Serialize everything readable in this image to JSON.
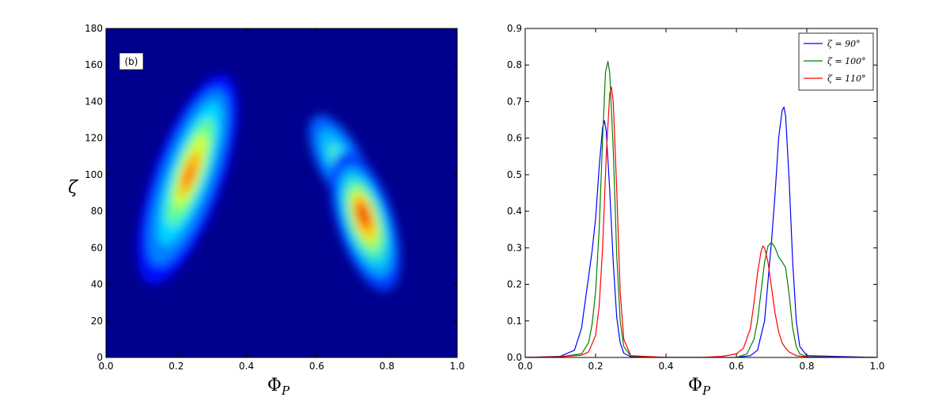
{
  "chart_data": [
    {
      "type": "heatmap",
      "panel_label": "(b)",
      "xlabel": "Φ",
      "xlabel_sub": "P",
      "ylabel": "ζ",
      "xlim": [
        0.0,
        1.0
      ],
      "ylim": [
        0,
        180
      ],
      "xticks": [
        "0.0",
        "0.2",
        "0.4",
        "0.6",
        "0.8",
        "1.0"
      ],
      "yticks": [
        "0",
        "20",
        "40",
        "60",
        "80",
        "100",
        "120",
        "140",
        "160",
        "180"
      ],
      "colormap": "jet",
      "background_color": "#00008f",
      "blobs": [
        {
          "x": 0.235,
          "y": 100,
          "peak": 0.85
        },
        {
          "x": 0.73,
          "y": 80,
          "peak": 1.0
        },
        {
          "x": 0.69,
          "y": 105,
          "peak": 0.5
        }
      ]
    },
    {
      "type": "line",
      "xlabel": "Φ",
      "xlabel_sub": "P",
      "ylabel": "",
      "xlim": [
        0.0,
        1.0
      ],
      "ylim": [
        0.0,
        0.9
      ],
      "xticks": [
        "0.0",
        "0.2",
        "0.4",
        "0.6",
        "0.8",
        "1.0"
      ],
      "yticks": [
        "0.0",
        "0.1",
        "0.2",
        "0.3",
        "0.4",
        "0.5",
        "0.6",
        "0.7",
        "0.8",
        "0.9"
      ],
      "legend_position": "top-right",
      "series": [
        {
          "name": "ζ = 90°",
          "color": "#0000ff",
          "x": [
            0.0,
            0.1,
            0.14,
            0.16,
            0.18,
            0.19,
            0.2,
            0.21,
            0.22,
            0.225,
            0.23,
            0.24,
            0.25,
            0.26,
            0.27,
            0.28,
            0.3,
            0.4,
            0.5,
            0.6,
            0.64,
            0.66,
            0.68,
            0.7,
            0.71,
            0.72,
            0.73,
            0.735,
            0.74,
            0.75,
            0.76,
            0.77,
            0.78,
            0.8,
            1.0
          ],
          "y": [
            0.0,
            0.003,
            0.02,
            0.08,
            0.22,
            0.29,
            0.38,
            0.52,
            0.63,
            0.648,
            0.62,
            0.46,
            0.26,
            0.11,
            0.04,
            0.012,
            0.002,
            0.0,
            0.0,
            0.0,
            0.005,
            0.02,
            0.1,
            0.32,
            0.45,
            0.6,
            0.675,
            0.685,
            0.66,
            0.48,
            0.26,
            0.1,
            0.03,
            0.005,
            0.0
          ]
        },
        {
          "name": "ζ = 100°",
          "color": "#008000",
          "x": [
            0.0,
            0.1,
            0.16,
            0.18,
            0.19,
            0.2,
            0.21,
            0.22,
            0.228,
            0.235,
            0.24,
            0.25,
            0.26,
            0.27,
            0.28,
            0.3,
            0.4,
            0.5,
            0.6,
            0.63,
            0.65,
            0.66,
            0.67,
            0.68,
            0.69,
            0.7,
            0.71,
            0.72,
            0.73,
            0.74,
            0.75,
            0.76,
            0.77,
            0.78,
            0.8,
            1.0
          ],
          "y": [
            0.0,
            0.002,
            0.01,
            0.04,
            0.09,
            0.18,
            0.35,
            0.6,
            0.78,
            0.81,
            0.78,
            0.57,
            0.28,
            0.1,
            0.03,
            0.004,
            0.0,
            0.0,
            0.0,
            0.01,
            0.05,
            0.1,
            0.18,
            0.26,
            0.305,
            0.315,
            0.3,
            0.275,
            0.262,
            0.245,
            0.17,
            0.08,
            0.03,
            0.01,
            0.002,
            0.0
          ]
        },
        {
          "name": "ζ = 110°",
          "color": "#ff0000",
          "x": [
            0.0,
            0.1,
            0.16,
            0.18,
            0.2,
            0.21,
            0.22,
            0.23,
            0.24,
            0.245,
            0.25,
            0.26,
            0.27,
            0.28,
            0.3,
            0.4,
            0.5,
            0.56,
            0.6,
            0.62,
            0.64,
            0.65,
            0.66,
            0.67,
            0.675,
            0.68,
            0.69,
            0.7,
            0.71,
            0.72,
            0.73,
            0.74,
            0.75,
            0.77,
            0.8,
            1.0
          ],
          "y": [
            0.0,
            0.002,
            0.006,
            0.015,
            0.06,
            0.14,
            0.3,
            0.55,
            0.72,
            0.74,
            0.7,
            0.46,
            0.18,
            0.05,
            0.005,
            0.0,
            0.0,
            0.003,
            0.01,
            0.025,
            0.08,
            0.15,
            0.23,
            0.29,
            0.305,
            0.3,
            0.26,
            0.19,
            0.12,
            0.07,
            0.04,
            0.025,
            0.015,
            0.005,
            0.001,
            0.0
          ]
        }
      ]
    }
  ]
}
